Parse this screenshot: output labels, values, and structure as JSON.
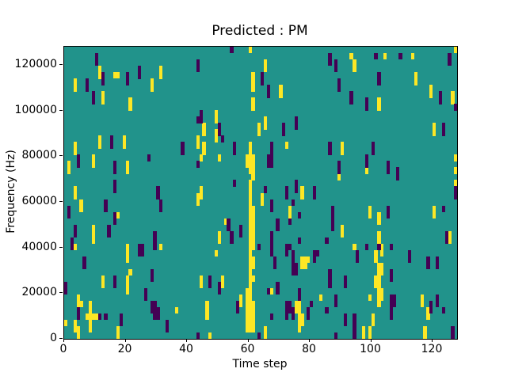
{
  "chart_data": {
    "type": "heatmap",
    "title": "Predicted : PM",
    "xlabel": "Time step",
    "ylabel": "Frequency (Hz)",
    "xlim": [
      0,
      128
    ],
    "ylim": [
      0,
      128000
    ],
    "xticks": {
      "values": [
        0,
        20,
        40,
        60,
        80,
        100,
        120
      ],
      "labels": [
        "0",
        "20",
        "40",
        "60",
        "80",
        "100",
        "120"
      ]
    },
    "yticks": {
      "values": [
        0,
        20000,
        40000,
        60000,
        80000,
        100000,
        120000
      ],
      "labels": [
        "0",
        "20000",
        "40000",
        "60000",
        "80000",
        "100000",
        "120000"
      ]
    },
    "grid": {
      "cols": 128,
      "rows": 46,
      "row_origin": "top"
    },
    "colors": {
      "background": "#21938b",
      "low": "#440154",
      "high": "#fde725",
      "figure_bg": "#ffffff",
      "axis": "#000000"
    },
    "legend": "none",
    "cells": {
      "note": "runs encoded as [col, top_row, row_span]; col 0-127 left to right, row 0-45 top to bottom",
      "high_runs": [
        [
          11,
          3,
          2
        ],
        [
          16,
          4,
          1
        ],
        [
          17,
          4,
          1
        ],
        [
          31,
          3,
          2
        ],
        [
          3,
          5,
          2
        ],
        [
          12,
          7,
          2
        ],
        [
          21,
          8,
          2
        ],
        [
          28,
          5,
          2
        ],
        [
          11,
          14,
          2
        ],
        [
          19,
          14,
          2
        ],
        [
          3,
          15,
          2
        ],
        [
          60,
          0,
          1
        ],
        [
          65,
          2,
          2
        ],
        [
          61,
          4,
          3
        ],
        [
          61,
          8,
          2
        ],
        [
          70,
          6,
          2
        ],
        [
          49,
          10,
          2
        ],
        [
          45,
          12,
          2
        ],
        [
          63,
          12,
          2
        ],
        [
          65,
          11,
          2
        ],
        [
          49,
          13,
          2
        ],
        [
          43,
          14,
          2
        ],
        [
          72,
          15,
          1
        ],
        [
          93,
          1,
          1
        ],
        [
          94,
          2,
          2
        ],
        [
          104,
          1,
          1
        ],
        [
          113,
          1,
          1
        ],
        [
          127,
          0,
          1
        ],
        [
          114,
          4,
          2
        ],
        [
          119,
          6,
          2
        ],
        [
          126,
          7,
          2
        ],
        [
          102,
          8,
          2
        ],
        [
          120,
          12,
          2
        ],
        [
          9,
          17,
          2
        ],
        [
          1,
          18,
          2
        ],
        [
          20,
          18,
          2
        ],
        [
          3,
          22,
          2
        ],
        [
          5,
          24,
          2
        ],
        [
          17,
          26,
          1
        ],
        [
          9,
          28,
          3
        ],
        [
          45,
          15,
          2
        ],
        [
          44,
          17,
          1
        ],
        [
          50,
          17,
          1
        ],
        [
          44,
          22,
          2
        ],
        [
          43,
          23,
          2
        ],
        [
          64,
          23,
          2
        ],
        [
          73,
          25,
          2
        ],
        [
          77,
          22,
          2
        ],
        [
          52,
          27,
          1
        ],
        [
          50,
          29,
          2
        ],
        [
          59,
          17,
          2
        ],
        [
          59,
          38,
          7
        ],
        [
          60,
          15,
          5
        ],
        [
          60,
          21,
          24
        ],
        [
          61,
          17,
          4
        ],
        [
          61,
          25,
          7
        ],
        [
          61,
          33,
          2
        ],
        [
          61,
          36,
          1
        ],
        [
          61,
          40,
          5
        ],
        [
          90,
          15,
          2
        ],
        [
          98,
          19,
          1
        ],
        [
          89,
          20,
          1
        ],
        [
          127,
          17,
          1
        ],
        [
          127,
          19,
          1
        ],
        [
          127,
          21,
          1
        ],
        [
          99,
          25,
          2
        ],
        [
          102,
          26,
          2
        ],
        [
          102,
          29,
          2
        ],
        [
          90,
          28,
          2
        ],
        [
          120,
          25,
          2
        ],
        [
          125,
          29,
          2
        ],
        [
          3,
          31,
          1
        ],
        [
          20,
          31,
          3
        ],
        [
          21,
          35,
          1
        ],
        [
          20,
          36,
          3
        ],
        [
          31,
          31,
          1
        ],
        [
          36,
          41,
          1
        ],
        [
          4,
          39,
          2
        ],
        [
          5,
          40,
          1
        ],
        [
          8,
          40,
          2
        ],
        [
          7,
          42,
          1
        ],
        [
          8,
          42,
          1
        ],
        [
          9,
          42,
          1
        ],
        [
          10,
          42,
          1
        ],
        [
          3,
          43,
          2
        ],
        [
          8,
          43,
          2
        ],
        [
          0,
          43,
          1
        ],
        [
          12,
          36,
          2
        ],
        [
          17,
          44,
          2
        ],
        [
          4,
          44,
          2
        ],
        [
          49,
          32,
          1
        ],
        [
          44,
          36,
          2
        ],
        [
          51,
          36,
          2
        ],
        [
          46,
          40,
          3
        ],
        [
          57,
          39,
          2
        ],
        [
          77,
          33,
          2
        ],
        [
          78,
          33,
          2
        ],
        [
          79,
          33,
          1
        ],
        [
          83,
          39,
          1
        ],
        [
          75,
          40,
          2
        ],
        [
          76,
          40,
          5
        ],
        [
          77,
          42,
          2
        ],
        [
          65,
          44,
          2
        ],
        [
          67,
          38,
          1
        ],
        [
          47,
          45,
          1
        ],
        [
          94,
          31,
          1
        ],
        [
          103,
          31,
          2
        ],
        [
          101,
          32,
          2
        ],
        [
          102,
          34,
          7
        ],
        [
          101,
          36,
          2
        ],
        [
          103,
          34,
          2
        ],
        [
          103,
          38,
          2
        ],
        [
          99,
          39,
          1
        ],
        [
          116,
          39,
          2
        ],
        [
          118,
          41,
          2
        ],
        [
          100,
          42,
          2
        ],
        [
          97,
          44,
          2
        ],
        [
          99,
          44,
          2
        ],
        [
          117,
          44,
          2
        ]
      ],
      "low_runs": [
        [
          10,
          1,
          2
        ],
        [
          12,
          4,
          2
        ],
        [
          20,
          4,
          2
        ],
        [
          24,
          3,
          2
        ],
        [
          7,
          5,
          2
        ],
        [
          9,
          7,
          2
        ],
        [
          15,
          14,
          2
        ],
        [
          38,
          15,
          2
        ],
        [
          54,
          0,
          1
        ],
        [
          43,
          2,
          2
        ],
        [
          64,
          4,
          2
        ],
        [
          66,
          6,
          2
        ],
        [
          44,
          10,
          2
        ],
        [
          43,
          11,
          1
        ],
        [
          50,
          12,
          2
        ],
        [
          51,
          14,
          1
        ],
        [
          71,
          12,
          2
        ],
        [
          75,
          11,
          2
        ],
        [
          86,
          1,
          2
        ],
        [
          88,
          2,
          2
        ],
        [
          89,
          5,
          2
        ],
        [
          101,
          1,
          1
        ],
        [
          109,
          1,
          1
        ],
        [
          125,
          1,
          2
        ],
        [
          102,
          4,
          2
        ],
        [
          93,
          7,
          2
        ],
        [
          122,
          7,
          2
        ],
        [
          98,
          8,
          2
        ],
        [
          123,
          12,
          2
        ],
        [
          127,
          9,
          1
        ],
        [
          4,
          17,
          2
        ],
        [
          16,
          18,
          2
        ],
        [
          27,
          17,
          1
        ],
        [
          16,
          21,
          2
        ],
        [
          13,
          24,
          2
        ],
        [
          30,
          22,
          2
        ],
        [
          31,
          24,
          2
        ],
        [
          1,
          25,
          2
        ],
        [
          16,
          26,
          2
        ],
        [
          3,
          28,
          2
        ],
        [
          14,
          28,
          2
        ],
        [
          29,
          29,
          3
        ],
        [
          2,
          30,
          2
        ],
        [
          55,
          15,
          2
        ],
        [
          43,
          18,
          1
        ],
        [
          55,
          21,
          1
        ],
        [
          65,
          22,
          1
        ],
        [
          67,
          24,
          2
        ],
        [
          72,
          22,
          2
        ],
        [
          75,
          21,
          2
        ],
        [
          81,
          22,
          2
        ],
        [
          74,
          24,
          1
        ],
        [
          73,
          27,
          1
        ],
        [
          76,
          26,
          1
        ],
        [
          69,
          27,
          2
        ],
        [
          67,
          29,
          2
        ],
        [
          53,
          27,
          2
        ],
        [
          54,
          29,
          2
        ],
        [
          57,
          28,
          2
        ],
        [
          66,
          17,
          2
        ],
        [
          67,
          15,
          4
        ],
        [
          86,
          15,
          2
        ],
        [
          100,
          15,
          2
        ],
        [
          98,
          17,
          2
        ],
        [
          89,
          18,
          2
        ],
        [
          105,
          18,
          2
        ],
        [
          108,
          19,
          2
        ],
        [
          87,
          25,
          4
        ],
        [
          105,
          25,
          2
        ],
        [
          123,
          25,
          1
        ],
        [
          124,
          29,
          2
        ],
        [
          127,
          22,
          2
        ],
        [
          6,
          33,
          2
        ],
        [
          16,
          36,
          2
        ],
        [
          24,
          31,
          2
        ],
        [
          25,
          31,
          2
        ],
        [
          28,
          35,
          2
        ],
        [
          26,
          38,
          2
        ],
        [
          28,
          40,
          2
        ],
        [
          29,
          40,
          3
        ],
        [
          30,
          41,
          2
        ],
        [
          33,
          43,
          2
        ],
        [
          0,
          37,
          2
        ],
        [
          4,
          41,
          2
        ],
        [
          11,
          42,
          1
        ],
        [
          13,
          42,
          1
        ],
        [
          18,
          42,
          2
        ],
        [
          63,
          31,
          1
        ],
        [
          67,
          31,
          2
        ],
        [
          68,
          33,
          2
        ],
        [
          72,
          31,
          2
        ],
        [
          73,
          31,
          1
        ],
        [
          74,
          32,
          4
        ],
        [
          75,
          34,
          2
        ],
        [
          81,
          32,
          2
        ],
        [
          82,
          32,
          1
        ],
        [
          47,
          36,
          2
        ],
        [
          50,
          37,
          2
        ],
        [
          56,
          40,
          2
        ],
        [
          76,
          30,
          1
        ],
        [
          85,
          30,
          1
        ],
        [
          76,
          38,
          2
        ],
        [
          69,
          37,
          2
        ],
        [
          72,
          40,
          3
        ],
        [
          73,
          40,
          2
        ],
        [
          74,
          41,
          2
        ],
        [
          79,
          41,
          2
        ],
        [
          80,
          40,
          1
        ],
        [
          85,
          41,
          1
        ],
        [
          66,
          38,
          1
        ],
        [
          67,
          42,
          1
        ],
        [
          63,
          45,
          1
        ],
        [
          43,
          45,
          1
        ],
        [
          98,
          31,
          1
        ],
        [
          102,
          31,
          1
        ],
        [
          106,
          31,
          1
        ],
        [
          95,
          32,
          2
        ],
        [
          112,
          32,
          2
        ],
        [
          118,
          33,
          2
        ],
        [
          121,
          33,
          2
        ],
        [
          106,
          35,
          2
        ],
        [
          106,
          39,
          4
        ],
        [
          107,
          39,
          2
        ],
        [
          121,
          39,
          2
        ],
        [
          119,
          40,
          2
        ],
        [
          123,
          41,
          1
        ],
        [
          91,
          36,
          2
        ],
        [
          86,
          35,
          3
        ],
        [
          88,
          39,
          2
        ],
        [
          91,
          42,
          2
        ],
        [
          94,
          42,
          4
        ],
        [
          126,
          44,
          2
        ],
        [
          88,
          45,
          1
        ]
      ]
    }
  }
}
